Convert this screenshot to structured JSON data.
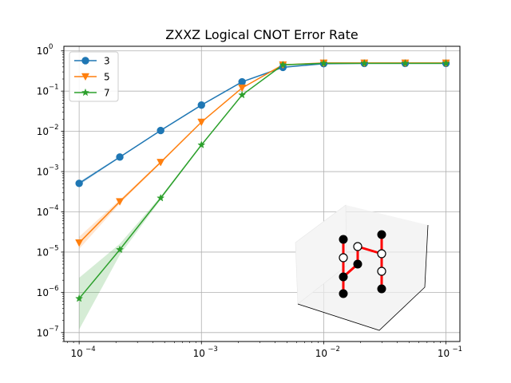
{
  "chart_data": {
    "type": "line",
    "title": "ZXXZ Logical CNOT Error Rate",
    "xlabel": "",
    "ylabel": "",
    "xscale": "log",
    "yscale": "log",
    "xlim": [
      7.5e-05,
      0.13
    ],
    "ylim": [
      6e-08,
      1.3
    ],
    "grid": true,
    "legend_position": "top-left",
    "x_ticks": [
      {
        "value": 0.0001,
        "base": "10",
        "exp": "−4"
      },
      {
        "value": 0.001,
        "base": "10",
        "exp": "−3"
      },
      {
        "value": 0.01,
        "base": "10",
        "exp": "−2"
      },
      {
        "value": 0.1,
        "base": "10",
        "exp": "−1"
      }
    ],
    "y_ticks": [
      {
        "value": 1e-07,
        "base": "10",
        "exp": "−7"
      },
      {
        "value": 1e-06,
        "base": "10",
        "exp": "−6"
      },
      {
        "value": 1e-05,
        "base": "10",
        "exp": "−5"
      },
      {
        "value": 0.0001,
        "base": "10",
        "exp": "−4"
      },
      {
        "value": 0.001,
        "base": "10",
        "exp": "−3"
      },
      {
        "value": 0.01,
        "base": "10",
        "exp": "−2"
      },
      {
        "value": 0.1,
        "base": "10",
        "exp": "−1"
      },
      {
        "value": 1,
        "base": "10",
        "exp": "0"
      }
    ],
    "x": [
      0.0001,
      0.000215,
      0.000464,
      0.001,
      0.00215,
      0.00464,
      0.01,
      0.0215,
      0.0464,
      0.1
    ],
    "series": [
      {
        "name": "3",
        "color": "#1f77b4",
        "marker": "circle",
        "values": [
          0.00051,
          0.0023,
          0.0105,
          0.045,
          0.17,
          0.39,
          0.48,
          0.49,
          0.49,
          0.49
        ],
        "lower": [
          0.00046,
          0.0022,
          0.0102,
          0.044,
          0.168,
          0.385,
          0.475,
          0.485,
          0.485,
          0.485
        ],
        "upper": [
          0.00056,
          0.0024,
          0.0108,
          0.046,
          0.172,
          0.395,
          0.485,
          0.495,
          0.495,
          0.495
        ]
      },
      {
        "name": "5",
        "color": "#ff7f0e",
        "marker": "triangle-down",
        "values": [
          1.7e-05,
          0.00018,
          0.0017,
          0.017,
          0.12,
          0.45,
          0.5,
          0.5,
          0.5,
          0.5
        ],
        "lower": [
          1.2e-05,
          0.00016,
          0.0016,
          0.0165,
          0.118,
          0.445,
          0.495,
          0.495,
          0.495,
          0.495
        ],
        "upper": [
          2.4e-05,
          0.0002,
          0.0018,
          0.0175,
          0.122,
          0.455,
          0.505,
          0.505,
          0.505,
          0.505
        ]
      },
      {
        "name": "7",
        "color": "#2ca02c",
        "marker": "star",
        "values": [
          7e-07,
          1.15e-05,
          0.00022,
          0.0046,
          0.08,
          0.45,
          0.49,
          0.49,
          0.49,
          0.49
        ],
        "lower": [
          1.2e-07,
          8.5e-06,
          0.0002,
          0.0044,
          0.078,
          0.445,
          0.485,
          0.485,
          0.485,
          0.485
        ],
        "upper": [
          2.3e-06,
          1.6e-05,
          0.00024,
          0.0048,
          0.082,
          0.455,
          0.495,
          0.495,
          0.495,
          0.495
        ]
      }
    ],
    "inset": {
      "description_type": "3d-lattice",
      "edge_color": "#ff0000",
      "filled_node_color": "#000000",
      "hollow_node_color": "#ffffff"
    }
  }
}
